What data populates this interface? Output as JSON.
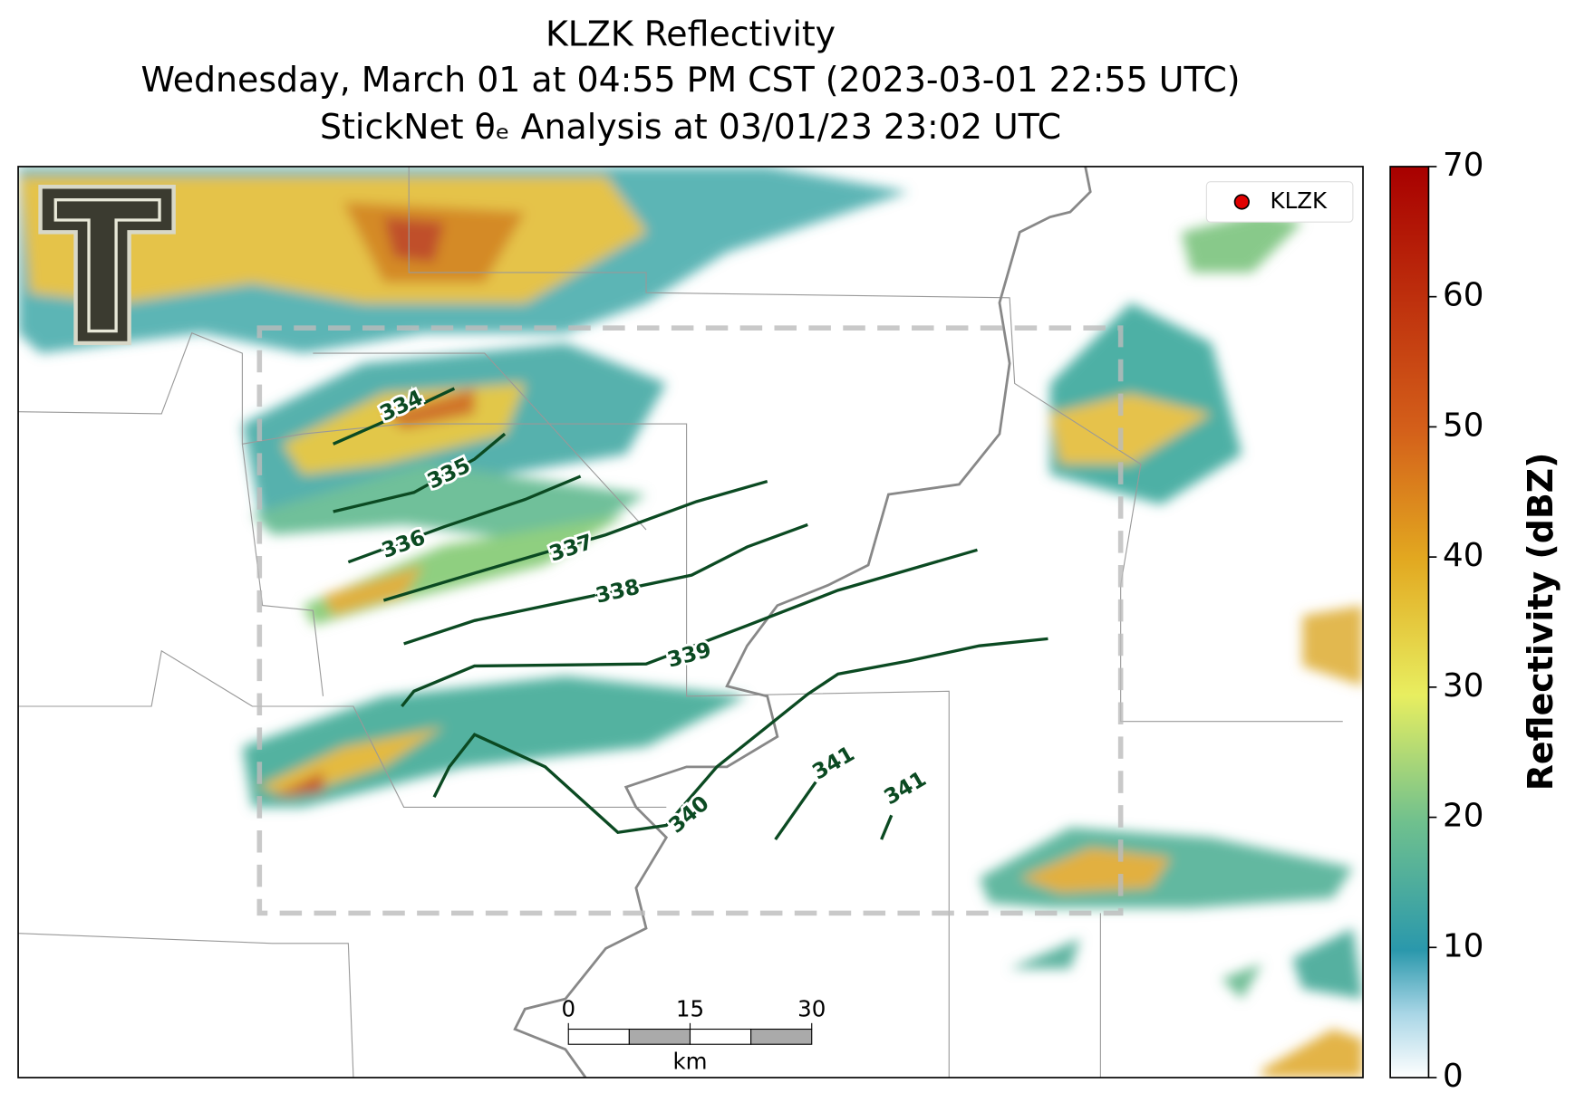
{
  "title": [
    "KLZK Reflectivity",
    "Wednesday, March 01 at 04:55 PM CST (2023-03-01 22:55 UTC)",
    "StickNet θₑ Analysis at 03/01/23 23:02 UTC"
  ],
  "legend": {
    "label": "KLZK"
  },
  "colorbar": {
    "label": "Reflectivity (dBZ)",
    "lim": [
      0,
      70
    ],
    "ticks": [
      0,
      10,
      20,
      30,
      40,
      50,
      60,
      70
    ]
  },
  "contours": [
    334,
    335,
    336,
    337,
    338,
    339,
    340,
    341
  ],
  "scale_bar": {
    "ticks": [
      0,
      15,
      30
    ],
    "unit": "km"
  }
}
